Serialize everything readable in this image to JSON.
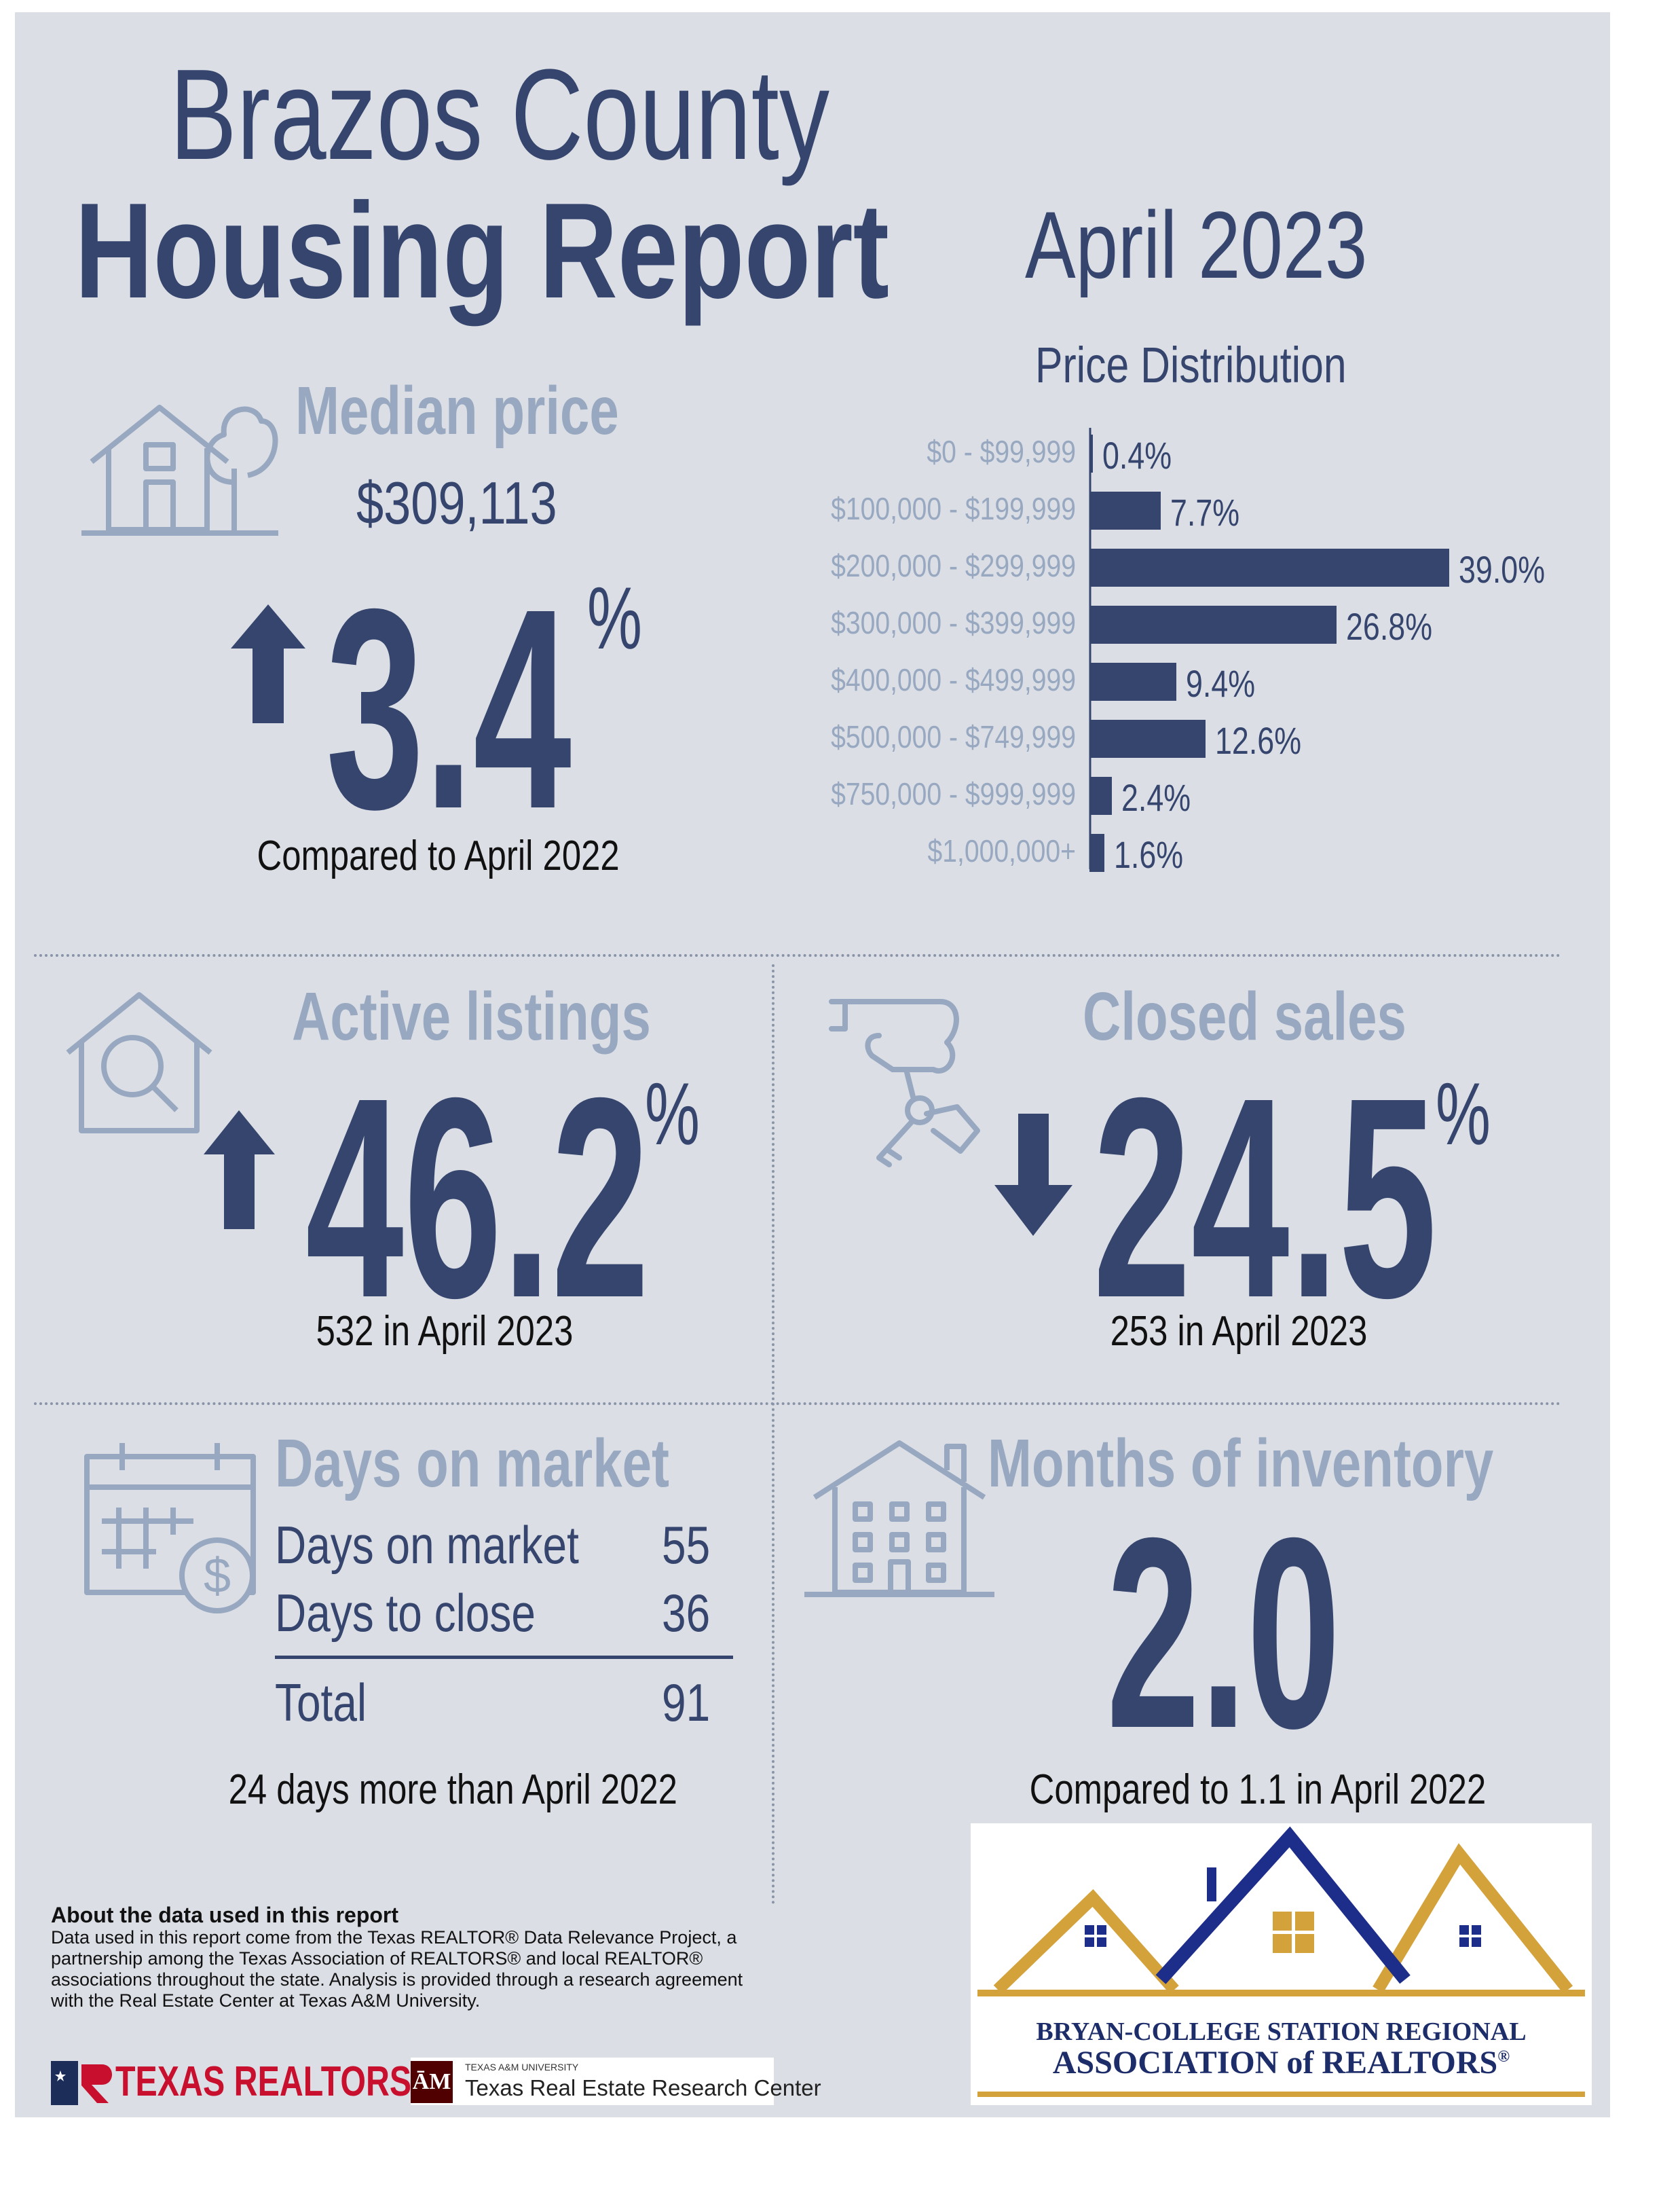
{
  "header": {
    "title_line1": "Brazos County",
    "title_line2": "Housing Report",
    "period": "April 2023"
  },
  "median_price": {
    "heading": "Median price",
    "value": "$309,113",
    "change": "3.4",
    "unit": "%",
    "direction": "up",
    "caption": "Compared to April 2022",
    "icon": "house-with-tree-icon"
  },
  "active_listings": {
    "heading": "Active listings",
    "change": "46.2",
    "unit": "%",
    "direction": "up",
    "caption": "532 in April 2023",
    "icon": "house-magnifier-icon"
  },
  "closed_sales": {
    "heading": "Closed sales",
    "change": "24.5",
    "unit": "%",
    "direction": "down",
    "caption": "253 in April 2023",
    "icon": "hand-with-keys-icon"
  },
  "days_on_market": {
    "heading": "Days on market",
    "rows": [
      {
        "label": "Days on market",
        "value": "55"
      },
      {
        "label": "Days to close",
        "value": "36"
      }
    ],
    "total_label": "Total",
    "total_value": "91",
    "caption": "24 days more than April 2022",
    "icon": "calendar-dollar-icon"
  },
  "months_inventory": {
    "heading": "Months of inventory",
    "value": "2.0",
    "caption": "Compared to 1.1 in April 2022",
    "icon": "apartment-building-icon"
  },
  "chart_data": {
    "type": "bar",
    "orientation": "horizontal",
    "title": "Price Distribution",
    "categories": [
      "$0 - $99,999",
      "$100,000 - $199,999",
      "$200,000 - $299,999",
      "$300,000 - $399,999",
      "$400,000 - $499,999",
      "$500,000 - $749,999",
      "$750,000 - $999,999",
      "$1,000,000+"
    ],
    "values": [
      0.4,
      7.7,
      39.0,
      26.8,
      9.4,
      12.6,
      2.4,
      1.6
    ],
    "value_labels": [
      "0.4%",
      "7.7%",
      "39.0%",
      "26.8%",
      "9.4%",
      "12.6%",
      "2.4%",
      "1.6%"
    ],
    "xlim": [
      0,
      39.0
    ],
    "bar_color": "#36456e"
  },
  "about": {
    "heading": "About the data used in this report",
    "body": "Data used in this report come from the Texas REALTOR® Data Relevance Project, a partnership among the Texas Association of REALTORS® and local REALTOR® associations throughout the state. Analysis is provided through a research agreement with the Real Estate Center at Texas A&M University."
  },
  "logos": {
    "texas_realtors": "TEXAS REALTORS",
    "tamu_small": "TEXAS A&M UNIVERSITY",
    "tamu_center": "Texas Real Estate Research Center",
    "bcs_line1": "BRYAN-COLLEGE STATION REGIONAL",
    "bcs_line2": "ASSOCIATION of REALTORS",
    "bcs_reg": "®"
  },
  "colors": {
    "navy": "#36456e",
    "grey_blue": "#97a8c0",
    "panel": "#dbdfe5",
    "gold": "#d4a23a",
    "tamu_maroon": "#500000",
    "realtors_red": "#c8102e"
  }
}
